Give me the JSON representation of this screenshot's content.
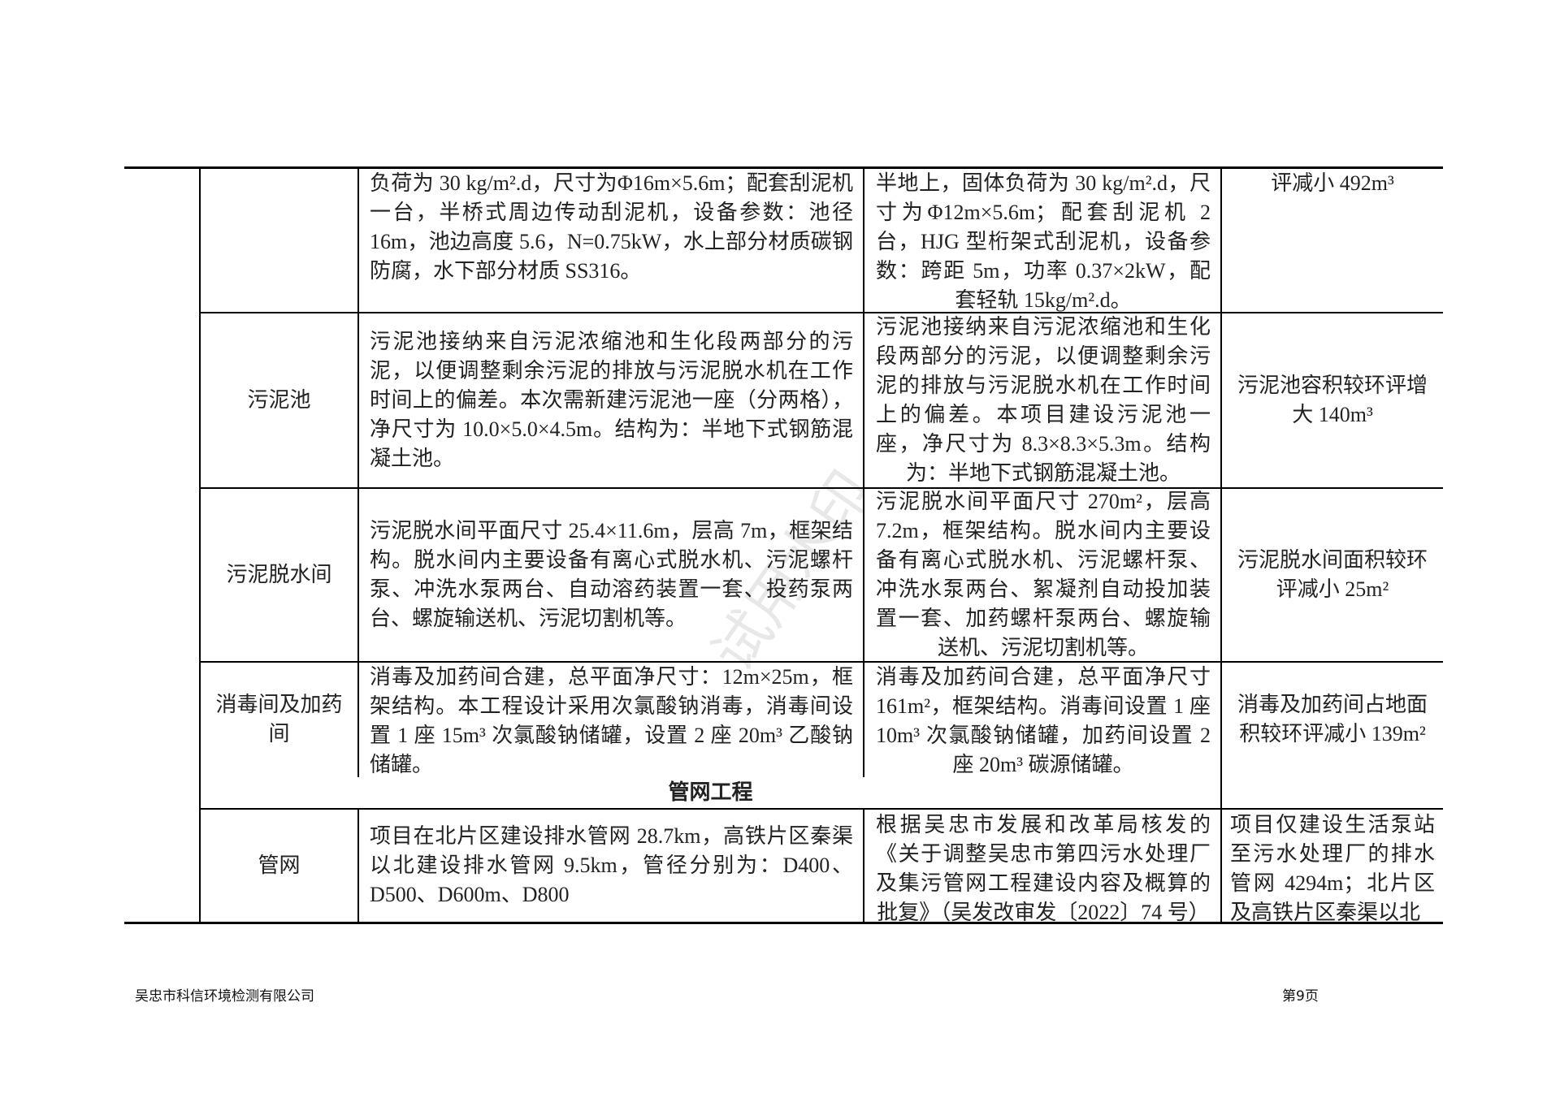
{
  "table": {
    "rows": [
      {
        "name": "",
        "eia": "负荷为 30 kg/m².d，尺寸为Φ16m×5.6m；配套刮泥机一台，半桥式周边传动刮泥机，设备参数：池径 16m，池边高度 5.6，N=0.75kW，水上部分材质碳钢防腐，水下部分材质 SS316。",
        "actual": "半地上，固体负荷为 30 kg/m².d，尺寸为Φ12m×5.6m；配套刮泥机 2 台，HJG 型桁架式刮泥机，设备参数：跨距 5m，功率 0.37×2kW，配套轻轨 15kg/m².d。",
        "diff": "评减小 492m³"
      },
      {
        "name": "污泥池",
        "eia": "污泥池接纳来自污泥浓缩池和生化段两部分的污泥，以便调整剩余污泥的排放与污泥脱水机在工作时间上的偏差。本次需新建污泥池一座（分两格），净尺寸为 10.0×5.0×4.5m。结构为：半地下式钢筋混凝土池。",
        "actual": "污泥池接纳来自污泥浓缩池和生化段两部分的污泥，以便调整剩余污泥的排放与污泥脱水机在工作时间上的偏差。本项目建设污泥池一座，净尺寸为 8.3×8.3×5.3m。结构为：半地下式钢筋混凝土池。",
        "diff": "污泥池容积较环评增大 140m³"
      },
      {
        "name": "污泥脱水间",
        "eia": "污泥脱水间平面尺寸 25.4×11.6m，层高 7m，框架结构。脱水间内主要设备有离心式脱水机、污泥螺杆泵、冲洗水泵两台、自动溶药装置一套、投药泵两台、螺旋输送机、污泥切割机等。",
        "actual": "污泥脱水间平面尺寸 270m²，层高 7.2m，框架结构。脱水间内主要设备有离心式脱水机、污泥螺杆泵、冲洗水泵两台、絮凝剂自动投加装置一套、加药螺杆泵两台、螺旋输送机、污泥切割机等。",
        "diff": "污泥脱水间面积较环评减小 25m²"
      },
      {
        "name": "消毒间及加药间",
        "eia": "消毒及加药间合建，总平面净尺寸：12m×25m，框架结构。本工程设计采用次氯酸钠消毒，消毒间设置 1 座 15m³ 次氯酸钠储罐，设置 2 座 20m³ 乙酸钠储罐。",
        "actual": "消毒及加药间合建，总平面净尺寸 161m²，框架结构。消毒间设置 1 座 10m³ 次氯酸钠储罐，加药间设置 2 座 20m³ 碳源储罐。",
        "diff": "消毒及加药间占地面积较环评减小 139m²"
      }
    ],
    "section": "管网工程",
    "last_row": {
      "name": "管网",
      "eia": "项目在北片区建设排水管网 28.7km，高铁片区秦渠以北建设排水管网 9.5km，管径分别为：D400、D500、D600m、D800",
      "actual": "根据吴忠市发展和改革局核发的《关于调整吴忠市第四污水处理厂及集污管网工程建设内容及概算的批复》（吴发改审发〔2022〕74 号）",
      "diff": "项目仅建设生活泵站至污水处理厂的排水管网 4294m；北片区及高铁片区秦渠以北"
    }
  },
  "footer": {
    "company": "吴忠市科信环境检测有限公司",
    "page": "第9页"
  },
  "watermark": "试用水印"
}
